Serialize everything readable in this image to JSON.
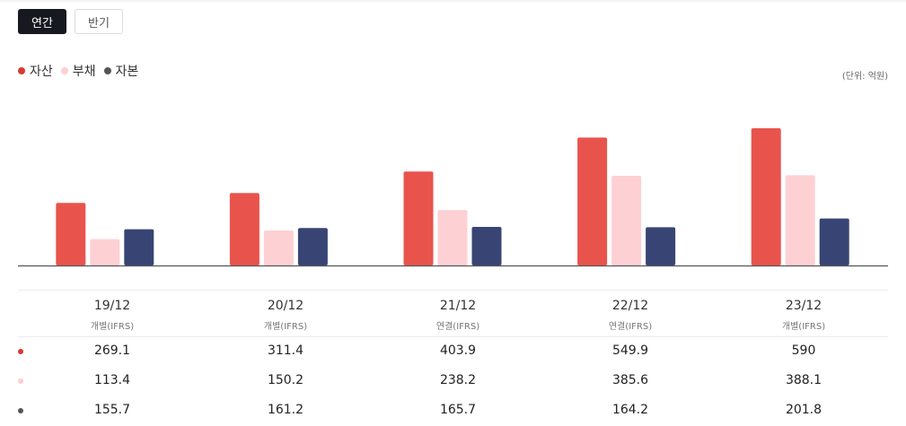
{
  "tabs": [
    {
      "label": "연간",
      "active": true
    },
    {
      "label": "반기",
      "active": false
    }
  ],
  "unit_label": "(단위: 억원)",
  "colors": {
    "asset": "#e8544c",
    "liability": "#fdd0d4",
    "equity": "#384574",
    "axis": "#555555"
  },
  "chart_data": {
    "type": "bar",
    "title": "",
    "xlabel": "",
    "ylabel": "",
    "categories": [
      "19/12",
      "20/12",
      "21/12",
      "22/12",
      "23/12"
    ],
    "basis": [
      "개별(IFRS)",
      "개별(IFRS)",
      "연결(IFRS)",
      "연결(IFRS)",
      "개별(IFRS)"
    ],
    "ylim": [
      0,
      590
    ],
    "series": [
      {
        "name": "자산",
        "color": "#e8544c",
        "values": [
          269.1,
          311.4,
          403.9,
          549.9,
          590
        ]
      },
      {
        "name": "부채",
        "color": "#fdd0d4",
        "values": [
          113.4,
          150.2,
          238.2,
          385.6,
          388.1
        ]
      },
      {
        "name": "자본",
        "color": "#384574",
        "values": [
          155.7,
          161.2,
          165.7,
          164.2,
          201.8
        ]
      }
    ],
    "legend_position": "top-left"
  },
  "table": {
    "rows": [
      {
        "series": "자산",
        "color": "#d63b32",
        "values": [
          "269.1",
          "311.4",
          "403.9",
          "549.9",
          "590"
        ]
      },
      {
        "series": "부채",
        "color": "#fbcfd3",
        "values": [
          "113.4",
          "150.2",
          "238.2",
          "385.6",
          "388.1"
        ]
      },
      {
        "series": "자본",
        "color": "#555555",
        "values": [
          "155.7",
          "161.2",
          "165.7",
          "164.2",
          "201.8"
        ]
      }
    ]
  }
}
